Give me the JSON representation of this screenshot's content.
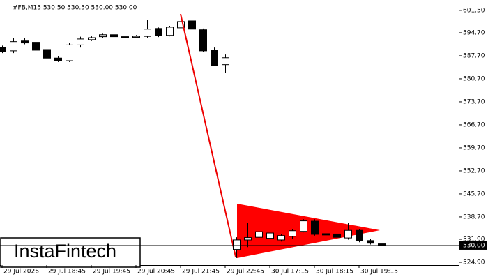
{
  "chart_data": {
    "type": "candlestick",
    "title": "#FB,M15  530.50 530.50 530.00 530.00",
    "watermark": "InstaFintech",
    "categories": [
      "29 Jul 2026",
      null,
      null,
      null,
      "29 Jul 18:45",
      null,
      null,
      null,
      "29 Jul 19:45",
      null,
      null,
      null,
      "29 Jul 20:45",
      null,
      null,
      null,
      "29 Jul 21:45",
      null,
      null,
      null,
      "29 Jul 22:45",
      null,
      null,
      null,
      "30 Jul 17:15",
      null,
      null,
      null,
      "30 Jul 18:15",
      null,
      null,
      null,
      "30 Jul 19:15",
      null,
      null
    ],
    "open": [
      590.3,
      589.2,
      592.2,
      591.8,
      589.6,
      587.0,
      586.2,
      591.0,
      592.6,
      593.5,
      594.1,
      593.5,
      593.3,
      593.6,
      596.0,
      593.9,
      596.2,
      598.3,
      595.6,
      589.4,
      585.0,
      528.8,
      531.7,
      532.5,
      532.2,
      531.7,
      532.8,
      534.3,
      537.4,
      533.6,
      533.5,
      532.3,
      534.6,
      531.5,
      530.5
    ],
    "high": [
      590.8,
      593.0,
      593.0,
      592.3,
      590.0,
      587.5,
      591.5,
      593.5,
      593.6,
      594.4,
      595.0,
      593.8,
      594.0,
      598.6,
      596.3,
      596.8,
      600.0,
      598.6,
      596.0,
      590.2,
      588.1,
      532.5,
      537.0,
      535.0,
      534.5,
      533.5,
      535.0,
      538.0,
      538.0,
      533.8,
      534.0,
      537.0,
      535.0,
      532.0,
      530.5
    ],
    "low": [
      588.5,
      588.5,
      591.2,
      588.8,
      586.0,
      585.8,
      585.8,
      590.2,
      592.2,
      593.2,
      593.2,
      592.6,
      593.1,
      593.2,
      593.4,
      593.6,
      595.7,
      594.6,
      588.8,
      584.6,
      582.4,
      526.2,
      529.5,
      529.5,
      530.5,
      531.2,
      532.0,
      534.0,
      533.0,
      532.8,
      532.0,
      531.8,
      531.0,
      530.3,
      530.0
    ],
    "close": [
      589.0,
      592.0,
      591.6,
      589.4,
      587.0,
      586.2,
      591.0,
      592.8,
      593.2,
      594.1,
      593.5,
      593.3,
      593.6,
      595.8,
      593.9,
      596.4,
      598.1,
      595.8,
      589.2,
      584.8,
      587.1,
      531.7,
      532.4,
      534.2,
      533.8,
      533.0,
      534.5,
      537.5,
      533.4,
      533.2,
      532.5,
      534.6,
      531.5,
      530.7,
      530.0
    ],
    "up_color": "#ffffff",
    "down_color": "#000000",
    "ylim": [
      524.05,
      603.6
    ],
    "yticks": [
      {
        "value": 601.5,
        "label": "601.50"
      },
      {
        "value": 594.7,
        "label": "594.70"
      },
      {
        "value": 587.7,
        "label": "587.70"
      },
      {
        "value": 580.7,
        "label": "580.70"
      },
      {
        "value": 573.7,
        "label": "573.70"
      },
      {
        "value": 566.7,
        "label": "566.70"
      },
      {
        "value": 559.7,
        "label": "559.70"
      },
      {
        "value": 552.7,
        "label": "552.70"
      },
      {
        "value": 545.7,
        "label": "545.70"
      },
      {
        "value": 538.7,
        "label": "538.70"
      },
      {
        "value": 531.9,
        "label": "531.90"
      },
      {
        "value": 524.9,
        "label": "524.90"
      }
    ],
    "last_price": {
      "value": 530.0,
      "label": "530.00"
    },
    "grid": false
  }
}
